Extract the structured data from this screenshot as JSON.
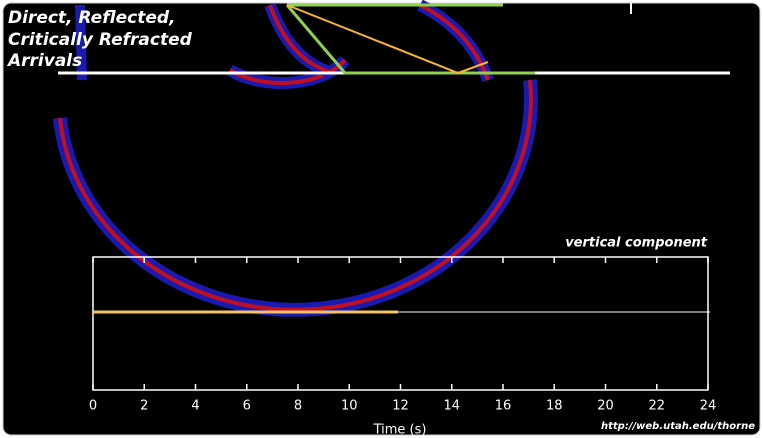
{
  "title_lines": [
    "Direct, Reflected,",
    "Critically Refracted",
    "Arrivals"
  ],
  "component_label": "vertical component",
  "axis": {
    "label": "Time (s)",
    "xlim": [
      0,
      24
    ],
    "xticks": [
      0,
      2,
      4,
      6,
      8,
      10,
      12,
      14,
      16,
      18,
      20,
      22,
      24
    ]
  },
  "credit": "http://web.utah.edu/thorne"
}
